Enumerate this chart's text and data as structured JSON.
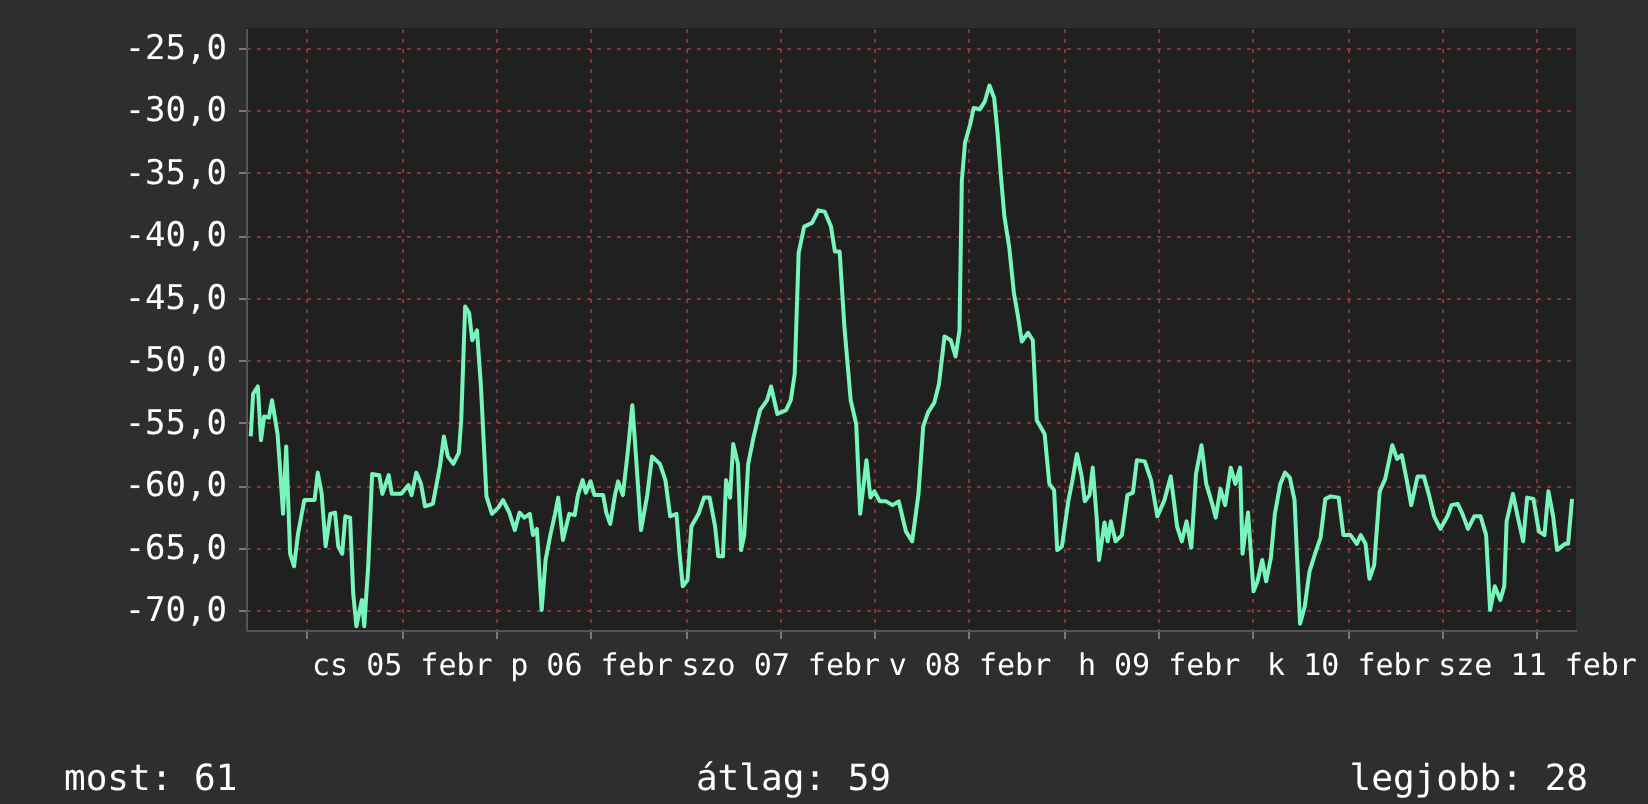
{
  "chart_data": {
    "type": "line",
    "x": [
      "--02-04T16:54",
      "--02-04T17:12",
      "--02-04T17:48",
      "--02-04T18:12",
      "--02-04T18:36",
      "--02-04T19:12",
      "--02-04T19:36",
      "--02-04T20:18",
      "--02-04T20:36",
      "--02-04T21:00",
      "--02-04T21:24",
      "--02-04T21:54",
      "--02-04T22:24",
      "--02-04T22:54",
      "--02-04T23:42",
      "--02-05T01:00",
      "--02-05T01:24",
      "--02-05T01:54",
      "--02-05T02:24",
      "--02-05T03:00",
      "--02-05T03:36",
      "--02-05T04:00",
      "--02-05T04:30",
      "--02-05T04:54",
      "--02-05T05:30",
      "--02-05T05:54",
      "--02-05T06:18",
      "--02-05T07:00",
      "--02-05T07:18",
      "--02-05T07:48",
      "--02-05T08:18",
      "--02-05T09:12",
      "--02-05T09:36",
      "--02-05T10:24",
      "--02-05T10:48",
      "--02-05T12:00",
      "--02-05T12:54",
      "--02-05T13:18",
      "--02-05T13:54",
      "--02-05T14:30",
      "--02-05T15:00",
      "--02-05T16:00",
      "--02-05T16:54",
      "--02-05T17:24",
      "--02-05T17:54",
      "--02-05T18:36",
      "--02-05T19:18",
      "--02-05T19:36",
      "--02-05T20:06",
      "--02-05T20:36",
      "--02-05T21:00",
      "--02-05T21:36",
      "--02-05T22:06",
      "--02-05T22:48",
      "--02-05T23:30",
      "--02-06T00:18",
      "--02-06T00:54",
      "--02-06T01:42",
      "--02-06T02:24",
      "--02-06T03:00",
      "--02-06T03:36",
      "--02-06T04:18",
      "--02-06T04:42",
      "--02-06T05:12",
      "--02-06T05:48",
      "--02-06T06:18",
      "--02-06T06:54",
      "--02-06T07:30",
      "--02-06T07:54",
      "--02-06T08:30",
      "--02-06T09:18",
      "--02-06T10:00",
      "--02-06T10:24",
      "--02-06T11:00",
      "--02-06T11:24",
      "--02-06T12:00",
      "--02-06T12:30",
      "--02-06T13:36",
      "--02-06T14:00",
      "--02-06T14:30",
      "--02-06T15:06",
      "--02-06T15:30",
      "--02-06T16:06",
      "--02-06T16:42",
      "--02-06T17:18",
      "--02-06T17:48",
      "--02-06T18:24",
      "--02-06T19:12",
      "--02-06T19:48",
      "--02-06T20:48",
      "--02-06T21:30",
      "--02-06T22:06",
      "--02-06T22:54",
      "--02-06T23:18",
      "--02-06T23:42",
      "--02-07T00:18",
      "--02-07T00:48",
      "--02-07T01:42",
      "--02-07T02:24",
      "--02-07T03:06",
      "--02-07T03:48",
      "--02-07T04:12",
      "--02-07T04:48",
      "--02-07T05:12",
      "--02-07T05:42",
      "--02-07T06:06",
      "--02-07T06:42",
      "--02-07T07:06",
      "--02-07T07:30",
      "--02-07T08:00",
      "--02-07T08:42",
      "--02-07T09:30",
      "--02-07T10:24",
      "--02-07T10:54",
      "--02-07T11:42",
      "--02-07T12:48",
      "--02-07T13:24",
      "--02-07T13:54",
      "--02-07T14:24",
      "--02-07T15:06",
      "--02-07T16:06",
      "--02-07T16:54",
      "--02-07T17:42",
      "--02-07T18:30",
      "--02-07T19:00",
      "--02-07T19:36",
      "--02-07T20:12",
      "--02-07T21:00",
      "--02-07T21:42",
      "--02-07T22:12",
      "--02-07T23:00",
      "--02-07T23:30",
      "--02-08T00:00",
      "--02-08T00:42",
      "--02-08T01:30",
      "--02-08T02:18",
      "--02-08T03:06",
      "--02-08T04:00",
      "--02-08T04:48",
      "--02-08T05:36",
      "--02-08T06:12",
      "--02-08T06:48",
      "--02-08T07:36",
      "--02-08T08:12",
      "--02-08T08:54",
      "--02-08T09:42",
      "--02-08T10:18",
      "--02-08T10:48",
      "--02-08T11:06",
      "--02-08T11:30",
      "--02-08T12:12",
      "--02-08T12:36",
      "--02-08T13:24",
      "--02-08T14:00",
      "--02-08T14:36",
      "--02-08T15:12",
      "--02-08T15:36",
      "--02-08T16:06",
      "--02-08T16:30",
      "--02-08T17:06",
      "--02-08T17:42",
      "--02-08T18:18",
      "--02-08T18:42",
      "--02-08T19:30",
      "--02-08T20:06",
      "--02-08T20:36",
      "--02-08T21:36",
      "--02-08T22:12",
      "--02-08T22:48",
      "--02-08T23:12",
      "--02-08T23:48",
      "--02-09T00:36",
      "--02-09T01:06",
      "--02-09T01:42",
      "--02-09T02:18",
      "--02-09T02:42",
      "--02-09T03:18",
      "--02-09T03:42",
      "--02-09T04:12",
      "--02-09T04:30",
      "--02-09T05:12",
      "--02-09T05:36",
      "--02-09T06:00",
      "--02-09T06:36",
      "--02-09T07:24",
      "--02-09T08:06",
      "--02-09T08:48",
      "--02-09T09:18",
      "--02-09T10:18",
      "--02-09T11:06",
      "--02-09T11:54",
      "--02-09T12:48",
      "--02-09T13:36",
      "--02-09T14:24",
      "--02-09T15:00",
      "--02-09T15:36",
      "--02-09T16:12",
      "--02-09T16:48",
      "--02-09T17:30",
      "--02-09T18:06",
      "--02-09T18:54",
      "--02-09T19:18",
      "--02-09T19:54",
      "--02-09T20:30",
      "--02-09T21:12",
      "--02-09T21:48",
      "--02-09T22:24",
      "--02-09T22:42",
      "--02-09T23:24",
      "--02-10T00:06",
      "--02-10T00:36",
      "--02-10T01:12",
      "--02-10T01:42",
      "--02-10T02:18",
      "--02-10T02:48",
      "--02-10T03:30",
      "--02-10T04:06",
      "--02-10T04:42",
      "--02-10T05:18",
      "--02-10T06:00",
      "--02-10T06:36",
      "--02-10T07:12",
      "--02-10T08:00",
      "--02-10T08:36",
      "--02-10T09:12",
      "--02-10T09:54",
      "--02-10T10:54",
      "--02-10T11:30",
      "--02-10T12:24",
      "--02-10T13:12",
      "--02-10T13:42",
      "--02-10T14:18",
      "--02-10T14:48",
      "--02-10T15:24",
      "--02-10T16:06",
      "--02-10T16:48",
      "--02-10T17:42",
      "--02-10T18:18",
      "--02-10T18:54",
      "--02-10T19:30",
      "--02-10T20:06",
      "--02-10T20:54",
      "--02-10T21:42",
      "--02-10T22:24",
      "--02-10T23:00",
      "--02-10T23:48",
      "--02-11T00:42",
      "--02-11T01:12",
      "--02-11T02:00",
      "--02-11T02:36",
      "--02-11T03:18",
      "--02-11T04:06",
      "--02-11T04:54",
      "--02-11T05:36",
      "--02-11T06:06",
      "--02-11T06:42",
      "--02-11T07:24",
      "--02-11T07:54",
      "--02-11T08:12",
      "--02-11T09:00",
      "--02-11T09:36",
      "--02-11T10:18",
      "--02-11T10:48",
      "--02-11T11:36",
      "--02-11T12:18",
      "--02-11T13:00",
      "--02-11T13:30",
      "--02-11T14:06",
      "--02-11T14:36",
      "--02-11T15:36",
      "--02-11T16:00",
      "--02-11T16:30"
    ],
    "series": [
      {
        "color": "#77f5bb",
        "values": [
          -56.1,
          -52.7,
          -52.1,
          -56.4,
          -54.5,
          -54.6,
          -53.2,
          -55.9,
          -58.5,
          -62.3,
          -56.9,
          -65.5,
          -66.5,
          -63.9,
          -61.2,
          -61.2,
          -59.0,
          -60.7,
          -64.9,
          -62.3,
          -62.2,
          -64.9,
          -65.5,
          -62.5,
          -62.6,
          -68.7,
          -71.3,
          -69.2,
          -71.3,
          -66.5,
          -59.1,
          -59.2,
          -60.7,
          -59.2,
          -60.7,
          -60.7,
          -60.0,
          -60.8,
          -59.0,
          -59.9,
          -61.7,
          -61.5,
          -58.5,
          -56.1,
          -57.7,
          -58.3,
          -57.4,
          -54.8,
          -45.7,
          -46.2,
          -48.4,
          -47.6,
          -52.1,
          -60.9,
          -62.3,
          -61.8,
          -61.2,
          -62.2,
          -63.6,
          -62.2,
          -62.6,
          -62.3,
          -64.0,
          -63.5,
          -70.0,
          -66.0,
          -64.0,
          -62.3,
          -61.0,
          -64.4,
          -62.3,
          -62.4,
          -60.8,
          -59.6,
          -60.6,
          -59.7,
          -60.8,
          -60.8,
          -62.2,
          -63.1,
          -60.8,
          -59.7,
          -60.8,
          -57.5,
          -53.6,
          -58.0,
          -63.6,
          -60.8,
          -57.7,
          -58.3,
          -59.6,
          -62.5,
          -62.3,
          -65.5,
          -68.1,
          -67.6,
          -63.3,
          -62.3,
          -61.0,
          -61.0,
          -63.3,
          -65.7,
          -65.7,
          -59.6,
          -61.0,
          -56.7,
          -58.3,
          -65.2,
          -64.0,
          -58.3,
          -56.1,
          -54.0,
          -53.2,
          -52.1,
          -54.3,
          -54.0,
          -53.2,
          -51.1,
          -41.4,
          -39.3,
          -39.0,
          -38.0,
          -38.1,
          -39.3,
          -41.3,
          -41.3,
          -47.3,
          -53.2,
          -55.1,
          -62.3,
          -58.0,
          -61.0,
          -60.5,
          -61.3,
          -61.3,
          -61.6,
          -61.3,
          -63.7,
          -64.5,
          -60.7,
          -55.3,
          -54.2,
          -53.4,
          -51.9,
          -48.1,
          -48.4,
          -49.7,
          -47.6,
          -35.6,
          -32.6,
          -31.0,
          -29.8,
          -29.9,
          -29.3,
          -28.0,
          -29.0,
          -31.6,
          -35.6,
          -38.5,
          -40.9,
          -44.6,
          -46.8,
          -48.5,
          -47.8,
          -48.4,
          -54.8,
          -55.9,
          -59.9,
          -60.4,
          -65.2,
          -64.9,
          -61.3,
          -59.7,
          -57.5,
          -59.3,
          -61.3,
          -60.8,
          -58.6,
          -62.6,
          -66.0,
          -63.0,
          -64.5,
          -62.9,
          -64.5,
          -64.0,
          -60.8,
          -60.6,
          -58.0,
          -58.1,
          -59.6,
          -62.5,
          -61.2,
          -59.3,
          -63.3,
          -64.5,
          -62.9,
          -65.0,
          -59.1,
          -56.8,
          -59.9,
          -61.6,
          -62.6,
          -60.3,
          -61.6,
          -58.6,
          -59.9,
          -58.6,
          -65.5,
          -62.2,
          -68.5,
          -67.7,
          -66.0,
          -67.7,
          -65.8,
          -62.3,
          -59.9,
          -59.0,
          -59.4,
          -61.2,
          -71.1,
          -69.7,
          -66.9,
          -65.3,
          -64.2,
          -61.1,
          -60.9,
          -61.0,
          -64.0,
          -64.0,
          -64.7,
          -64.0,
          -64.7,
          -67.5,
          -66.4,
          -60.5,
          -59.5,
          -56.8,
          -57.9,
          -57.6,
          -59.5,
          -61.6,
          -59.3,
          -59.3,
          -60.9,
          -62.5,
          -63.5,
          -62.5,
          -61.6,
          -61.5,
          -62.3,
          -63.5,
          -62.5,
          -62.5,
          -64.0,
          -70.0,
          -68.1,
          -69.2,
          -68.1,
          -62.9,
          -60.7,
          -62.5,
          -64.5,
          -61.0,
          -61.1,
          -63.7,
          -64.0,
          -60.5,
          -62.5,
          -65.2,
          -64.7,
          -64.7,
          -61.1
        ]
      }
    ],
    "xlim": [
      "--02-04T16:18",
      "--02-11T17:00"
    ],
    "xticks": [
      {
        "value": "--02-05T00:00",
        "label": null
      },
      {
        "value": "--02-05T12:00",
        "label": "cs 05 febr"
      },
      {
        "value": "--02-06T00:00",
        "label": null
      },
      {
        "value": "--02-06T12:00",
        "label": "p 06 febr"
      },
      {
        "value": "--02-07T00:00",
        "label": null
      },
      {
        "value": "--02-07T12:00",
        "label": "szo 07 febr"
      },
      {
        "value": "--02-08T00:00",
        "label": null
      },
      {
        "value": "--02-08T12:00",
        "label": "v 08 febr"
      },
      {
        "value": "--02-09T00:00",
        "label": null
      },
      {
        "value": "--02-09T12:00",
        "label": "h 09 febr"
      },
      {
        "value": "--02-10T00:00",
        "label": null
      },
      {
        "value": "--02-10T12:00",
        "label": "k 10 febr"
      },
      {
        "value": "--02-11T00:00",
        "label": null
      },
      {
        "value": "--02-11T12:00",
        "label": "sze 11 febr"
      }
    ],
    "ylim": [
      -71.6,
      -23.4
    ],
    "yticks": [
      {
        "value": -70,
        "label": "-70,0"
      },
      {
        "value": -65,
        "label": "-65,0"
      },
      {
        "value": -60,
        "label": "-60,0"
      },
      {
        "value": -55,
        "label": "-55,0"
      },
      {
        "value": -50,
        "label": "-50,0"
      },
      {
        "value": -45,
        "label": "-45,0"
      },
      {
        "value": -40,
        "label": "-40,0"
      },
      {
        "value": -35,
        "label": "-35,0"
      },
      {
        "value": -30,
        "label": "-30,0"
      },
      {
        "value": -25,
        "label": "-25,0"
      }
    ],
    "grid": true,
    "annotations": [
      "most: 61",
      "átlag: 59",
      "legjobb: 28"
    ]
  }
}
